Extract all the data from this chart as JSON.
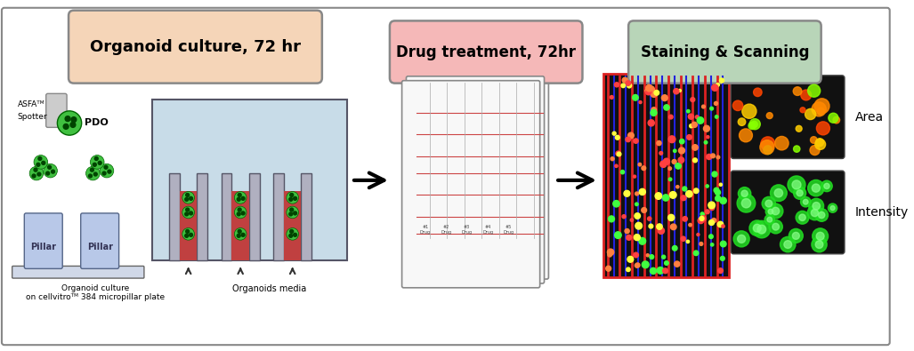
{
  "bg_color": "#ffffff",
  "border_color": "#888888",
  "box1_text": "Organoid culture, 72 hr",
  "box1_color": "#f5d5b8",
  "box1_border": "#888888",
  "box2_text": "Drug treatment, 72hr",
  "box2_color": "#f5b8b8",
  "box2_border": "#888888",
  "box3_text": "Staining & Scanning",
  "box3_color": "#b8d5b8",
  "box3_border": "#888888",
  "label1": "ASFAᵀᴹ",
  "label1b": "Spotter",
  "label2": "PDO",
  "label3": "Pillar",
  "label4": "Pillar",
  "label5": "Organoid culture\non cellvitroᵀᴹ 384 micropillar plate",
  "label6": "Organoids media",
  "label7": "Area",
  "label8": "Intensity",
  "arrow_color": "#111111",
  "pillar_fill": "#b8c8e8",
  "pillar_border": "#666699",
  "tank_fill": "#c8dce8",
  "well_fill": "#c04040",
  "organoid_color": "#40c040",
  "spotter_color": "#aaaaaa",
  "plate_bg": "#f0f0f0",
  "plate_red": "#dd4444",
  "scan_red": "#dd2222",
  "scan_blue": "#2222dd"
}
